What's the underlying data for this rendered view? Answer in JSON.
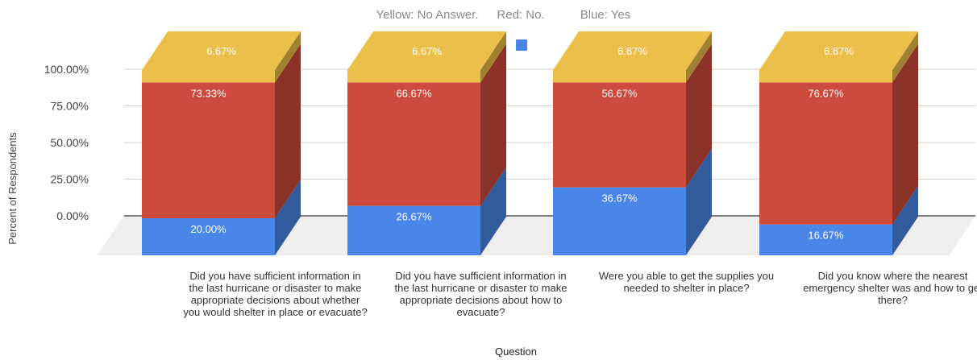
{
  "chart_data": {
    "type": "bar",
    "stacked": true,
    "three_d": true,
    "subtitle_parts": [
      "Yellow: No Answer.",
      "Red: No.",
      "Blue: Yes"
    ],
    "xlabel": "Question",
    "ylabel": "Percent of Respondents",
    "y_ticks": [
      "100.00%",
      "75.00%",
      "50.00%",
      "25.00%",
      "0.00%"
    ],
    "ylim": [
      0,
      100
    ],
    "grid": true,
    "legend": "top-center",
    "categories": [
      [
        "Did you have sufficient information in",
        "the last hurricane or disaster to make",
        "appropriate decisions about whether",
        "you would shelter in place or evacuate?"
      ],
      [
        "Did you have sufficient information in",
        "the last hurricane or disaster to make",
        "appropriate decisions about how to",
        "evacuate?"
      ],
      [
        "Were you able to get the supplies you",
        "needed to shelter in place?"
      ],
      [
        "Did you know where the nearest",
        "emergency shelter was and how to get",
        "there?"
      ]
    ],
    "series": [
      {
        "key": "yes",
        "color": "#4a86e8",
        "values": [
          20.0,
          26.67,
          36.67,
          16.67
        ],
        "labels": [
          "20.00%",
          "26.67%",
          "36.67%",
          "16.67%"
        ]
      },
      {
        "key": "no",
        "color": "#cc4b3d",
        "values": [
          73.33,
          66.67,
          56.67,
          76.67
        ],
        "labels": [
          "73.33%",
          "66.67%",
          "56.67%",
          "76.67%"
        ]
      },
      {
        "key": "no_answer",
        "color": "#ecbe4a",
        "values": [
          6.67,
          6.67,
          6.67,
          6.67
        ],
        "labels": [
          "6.67%",
          "6.67%",
          "6.67%",
          "6.67%"
        ]
      }
    ],
    "legend_order": [
      "no_answer",
      "no",
      "yes"
    ]
  }
}
